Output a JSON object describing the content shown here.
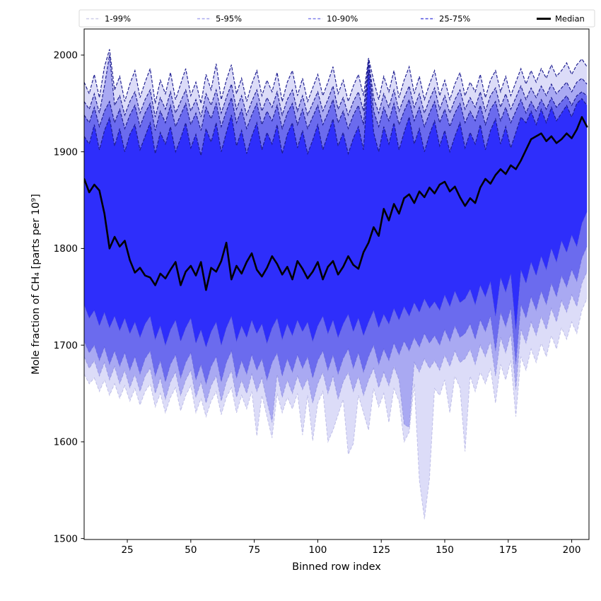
{
  "figure": {
    "background": "#ffffff"
  },
  "legend": {
    "border_color": "#d9d9d9",
    "background": "#ffffff",
    "entries": [
      {
        "label": "1-99%",
        "line_color": "#cdcde8",
        "style": "dashed"
      },
      {
        "label": "5-95%",
        "line_color": "#a9a9ef",
        "style": "dashed"
      },
      {
        "label": "10-90%",
        "line_color": "#8181ec",
        "style": "dashed"
      },
      {
        "label": "25-75%",
        "line_color": "#5353e0",
        "style": "dashed"
      },
      {
        "label": "Median",
        "line_color": "#000000",
        "style": "solid"
      }
    ]
  },
  "chart_data": {
    "type": "area",
    "subtype": "percentile-fan-chart",
    "title": "",
    "xlabel": "Binned row index",
    "ylabel": "Mole fraction of CH₄ [parts per 10⁹]",
    "xlim": [
      8,
      206.8
    ],
    "ylim": [
      1499,
      2027
    ],
    "xticks": [
      25,
      50,
      75,
      100,
      125,
      150,
      175,
      200
    ],
    "yticks": [
      1500,
      1600,
      1700,
      1800,
      1900,
      2000
    ],
    "grid": false,
    "legend_position": "top, expanded outside axes",
    "edge_line_color": "#1b1b8e",
    "median_color": "#000000",
    "bands": [
      {
        "label": "1-99%",
        "lower": "p1",
        "upper": "p99",
        "fill": "#dcdcf8"
      },
      {
        "label": "5-95%",
        "lower": "p5",
        "upper": "p95",
        "fill": "#a9a9f2"
      },
      {
        "label": "10-90%",
        "lower": "p10",
        "upper": "p90",
        "fill": "#6b6bee"
      },
      {
        "label": "25-75%",
        "lower": "p25",
        "upper": "p75",
        "fill": "#2e2efb"
      }
    ],
    "x": [
      8,
      10,
      12,
      14,
      16,
      18,
      20,
      22,
      24,
      26,
      28,
      30,
      32,
      34,
      36,
      38,
      40,
      42,
      44,
      46,
      48,
      50,
      52,
      54,
      56,
      58,
      60,
      62,
      64,
      66,
      68,
      70,
      72,
      74,
      76,
      78,
      80,
      82,
      84,
      86,
      88,
      90,
      92,
      94,
      96,
      98,
      100,
      102,
      104,
      106,
      108,
      110,
      112,
      114,
      116,
      118,
      120,
      122,
      124,
      126,
      128,
      130,
      132,
      134,
      136,
      138,
      140,
      142,
      144,
      146,
      148,
      150,
      152,
      154,
      156,
      158,
      160,
      162,
      164,
      166,
      168,
      170,
      172,
      174,
      176,
      178,
      180,
      182,
      184,
      186,
      188,
      190,
      192,
      194,
      196,
      198,
      200,
      202,
      204,
      206
    ],
    "series": {
      "p1": [
        1670,
        1660,
        1666,
        1652,
        1664,
        1648,
        1660,
        1645,
        1658,
        1642,
        1655,
        1638,
        1652,
        1660,
        1636,
        1650,
        1630,
        1646,
        1656,
        1632,
        1648,
        1658,
        1630,
        1645,
        1626,
        1642,
        1652,
        1628,
        1646,
        1656,
        1630,
        1648,
        1634,
        1652,
        1606,
        1648,
        1626,
        1604,
        1650,
        1630,
        1646,
        1634,
        1650,
        1607,
        1648,
        1601,
        1640,
        1652,
        1600,
        1612,
        1628,
        1644,
        1587,
        1598,
        1648,
        1630,
        1612,
        1655,
        1636,
        1650,
        1620,
        1655,
        1642,
        1600,
        1610,
        1660,
        1560,
        1520,
        1562,
        1655,
        1648,
        1664,
        1630,
        1668,
        1656,
        1590,
        1668,
        1652,
        1672,
        1660,
        1676,
        1640,
        1680,
        1664,
        1684,
        1626,
        1688,
        1674,
        1696,
        1682,
        1702,
        1688,
        1710,
        1696,
        1718,
        1706,
        1724,
        1712,
        1736,
        1748
      ],
      "p5": [
        1688,
        1676,
        1684,
        1668,
        1682,
        1664,
        1678,
        1660,
        1674,
        1656,
        1670,
        1652,
        1668,
        1676,
        1650,
        1666,
        1644,
        1662,
        1672,
        1648,
        1664,
        1674,
        1646,
        1662,
        1640,
        1658,
        1668,
        1642,
        1662,
        1674,
        1646,
        1664,
        1650,
        1670,
        1652,
        1666,
        1642,
        1620,
        1670,
        1646,
        1664,
        1650,
        1668,
        1654,
        1666,
        1640,
        1660,
        1672,
        1650,
        1668,
        1644,
        1662,
        1672,
        1652,
        1668,
        1648,
        1664,
        1676,
        1656,
        1672,
        1658,
        1678,
        1664,
        1618,
        1615,
        1682,
        1672,
        1686,
        1676,
        1684,
        1674,
        1690,
        1678,
        1694,
        1682,
        1686,
        1696,
        1680,
        1700,
        1688,
        1704,
        1668,
        1708,
        1692,
        1712,
        1654,
        1716,
        1702,
        1724,
        1710,
        1730,
        1716,
        1738,
        1724,
        1746,
        1734,
        1752,
        1740,
        1764,
        1776
      ],
      "p10": [
        1704,
        1692,
        1700,
        1684,
        1698,
        1680,
        1694,
        1678,
        1692,
        1674,
        1688,
        1670,
        1686,
        1694,
        1668,
        1684,
        1662,
        1680,
        1690,
        1666,
        1682,
        1692,
        1664,
        1680,
        1660,
        1678,
        1688,
        1662,
        1682,
        1694,
        1666,
        1684,
        1670,
        1690,
        1674,
        1686,
        1664,
        1682,
        1692,
        1668,
        1686,
        1672,
        1690,
        1676,
        1688,
        1666,
        1684,
        1694,
        1674,
        1690,
        1670,
        1686,
        1696,
        1676,
        1692,
        1672,
        1688,
        1700,
        1680,
        1696,
        1684,
        1702,
        1690,
        1704,
        1694,
        1708,
        1698,
        1712,
        1702,
        1710,
        1700,
        1716,
        1704,
        1720,
        1708,
        1712,
        1722,
        1706,
        1726,
        1714,
        1730,
        1694,
        1734,
        1719,
        1738,
        1680,
        1742,
        1728,
        1750,
        1736,
        1756,
        1742,
        1764,
        1750,
        1772,
        1760,
        1778,
        1766,
        1790,
        1802
      ],
      "p25": [
        1742,
        1728,
        1736,
        1720,
        1734,
        1718,
        1730,
        1715,
        1728,
        1712,
        1724,
        1708,
        1722,
        1730,
        1706,
        1720,
        1700,
        1716,
        1726,
        1704,
        1718,
        1728,
        1702,
        1716,
        1698,
        1714,
        1724,
        1700,
        1718,
        1730,
        1704,
        1720,
        1708,
        1726,
        1712,
        1722,
        1702,
        1718,
        1728,
        1706,
        1722,
        1710,
        1726,
        1714,
        1724,
        1704,
        1720,
        1730,
        1712,
        1726,
        1708,
        1722,
        1732,
        1714,
        1728,
        1710,
        1724,
        1736,
        1718,
        1732,
        1722,
        1738,
        1726,
        1740,
        1730,
        1744,
        1734,
        1748,
        1738,
        1745,
        1736,
        1752,
        1740,
        1756,
        1744,
        1748,
        1758,
        1742,
        1762,
        1750,
        1766,
        1730,
        1770,
        1755,
        1774,
        1716,
        1778,
        1764,
        1786,
        1772,
        1792,
        1778,
        1800,
        1786,
        1808,
        1796,
        1814,
        1802,
        1826,
        1838
      ],
      "median": [
        1872,
        1858,
        1866,
        1860,
        1836,
        1800,
        1812,
        1802,
        1808,
        1788,
        1775,
        1780,
        1772,
        1770,
        1762,
        1774,
        1769,
        1778,
        1786,
        1762,
        1776,
        1782,
        1772,
        1786,
        1757,
        1780,
        1776,
        1787,
        1806,
        1768,
        1782,
        1774,
        1786,
        1795,
        1778,
        1771,
        1780,
        1792,
        1784,
        1773,
        1781,
        1768,
        1787,
        1779,
        1769,
        1776,
        1786,
        1768,
        1781,
        1787,
        1773,
        1781,
        1792,
        1783,
        1779,
        1796,
        1806,
        1822,
        1813,
        1841,
        1829,
        1846,
        1836,
        1852,
        1856,
        1847,
        1859,
        1853,
        1863,
        1857,
        1866,
        1869,
        1859,
        1864,
        1853,
        1844,
        1852,
        1847,
        1863,
        1872,
        1867,
        1876,
        1882,
        1877,
        1886,
        1882,
        1891,
        1902,
        1913,
        1916,
        1919,
        1911,
        1916,
        1909,
        1913,
        1919,
        1914,
        1923,
        1936,
        1926
      ],
      "p75": [
        1916,
        1908,
        1928,
        1902,
        1922,
        1935,
        1906,
        1924,
        1900,
        1918,
        1928,
        1902,
        1916,
        1930,
        1898,
        1920,
        1908,
        1926,
        1900,
        1914,
        1930,
        1904,
        1918,
        1896,
        1924,
        1910,
        1930,
        1900,
        1920,
        1938,
        1906,
        1922,
        1898,
        1916,
        1930,
        1902,
        1920,
        1908,
        1928,
        1898,
        1918,
        1930,
        1904,
        1922,
        1898,
        1912,
        1928,
        1902,
        1918,
        1934,
        1906,
        1920,
        1898,
        1914,
        1926,
        1902,
        1985,
        1920,
        1900,
        1926,
        1908,
        1930,
        1902,
        1920,
        1936,
        1908,
        1924,
        1900,
        1918,
        1932,
        1906,
        1922,
        1900,
        1916,
        1930,
        1904,
        1920,
        1908,
        1928,
        1902,
        1922,
        1934,
        1908,
        1926,
        1904,
        1920,
        1936,
        1930,
        1942,
        1928,
        1944,
        1930,
        1946,
        1932,
        1940,
        1948,
        1936,
        1950,
        1955,
        1948
      ],
      "p90": [
        1938,
        1930,
        1946,
        1926,
        1942,
        1952,
        1930,
        1944,
        1924,
        1938,
        1948,
        1926,
        1940,
        1950,
        1922,
        1942,
        1930,
        1948,
        1926,
        1938,
        1950,
        1928,
        1940,
        1922,
        1946,
        1934,
        1950,
        1926,
        1942,
        1956,
        1930,
        1944,
        1924,
        1938,
        1950,
        1928,
        1942,
        1932,
        1948,
        1924,
        1940,
        1950,
        1928,
        1944,
        1924,
        1936,
        1948,
        1928,
        1940,
        1954,
        1930,
        1942,
        1924,
        1938,
        1948,
        1928,
        1993,
        1942,
        1926,
        1946,
        1932,
        1950,
        1928,
        1942,
        1954,
        1932,
        1946,
        1926,
        1940,
        1952,
        1930,
        1944,
        1926,
        1940,
        1950,
        1930,
        1942,
        1932,
        1948,
        1928,
        1944,
        1952,
        1932,
        1946,
        1930,
        1942,
        1954,
        1940,
        1952,
        1942,
        1954,
        1944,
        1956,
        1946,
        1952,
        1958,
        1948,
        1958,
        1962,
        1958
      ],
      "p95": [
        1952,
        1944,
        1960,
        1940,
        1968,
        2000,
        1948,
        1958,
        1938,
        1952,
        1962,
        1940,
        1954,
        1964,
        1936,
        1956,
        1944,
        1962,
        1940,
        1952,
        1964,
        1942,
        1954,
        1936,
        1960,
        1948,
        1964,
        1940,
        1956,
        1970,
        1944,
        1958,
        1938,
        1952,
        1964,
        1942,
        1956,
        1946,
        1962,
        1938,
        1954,
        1964,
        1942,
        1958,
        1938,
        1950,
        1962,
        1942,
        1954,
        1968,
        1944,
        1956,
        1938,
        1952,
        1962,
        1942,
        1995,
        1956,
        1940,
        1960,
        1946,
        1964,
        1942,
        1956,
        1968,
        1946,
        1960,
        1940,
        1954,
        1966,
        1944,
        1958,
        1940,
        1954,
        1964,
        1944,
        1956,
        1946,
        1962,
        1942,
        1958,
        1966,
        1946,
        1960,
        1944,
        1956,
        1968,
        1954,
        1966,
        1956,
        1968,
        1958,
        1970,
        1960,
        1966,
        1972,
        1962,
        1972,
        1976,
        1970
      ],
      "p99": [
        1972,
        1960,
        1980,
        1956,
        1988,
        2006,
        1964,
        1978,
        1952,
        1970,
        1984,
        1956,
        1972,
        1986,
        1950,
        1974,
        1960,
        1982,
        1954,
        1970,
        1986,
        1958,
        1972,
        1950,
        1980,
        1964,
        1991,
        1954,
        1974,
        1990,
        1960,
        1976,
        1952,
        1970,
        1984,
        1958,
        1974,
        1962,
        1982,
        1952,
        1972,
        1984,
        1958,
        1976,
        1952,
        1966,
        1980,
        1958,
        1972,
        1988,
        1960,
        1974,
        1952,
        1968,
        1980,
        1958,
        1997,
        1974,
        1954,
        1978,
        1962,
        1984,
        1956,
        1974,
        1988,
        1960,
        1978,
        1954,
        1970,
        1984,
        1958,
        1974,
        1954,
        1970,
        1982,
        1958,
        1972,
        1962,
        1980,
        1956,
        1974,
        1984,
        1962,
        1978,
        1958,
        1972,
        1986,
        1970,
        1984,
        1972,
        1986,
        1976,
        1990,
        1978,
        1984,
        1992,
        1980,
        1990,
        1996,
        1988
      ]
    }
  }
}
